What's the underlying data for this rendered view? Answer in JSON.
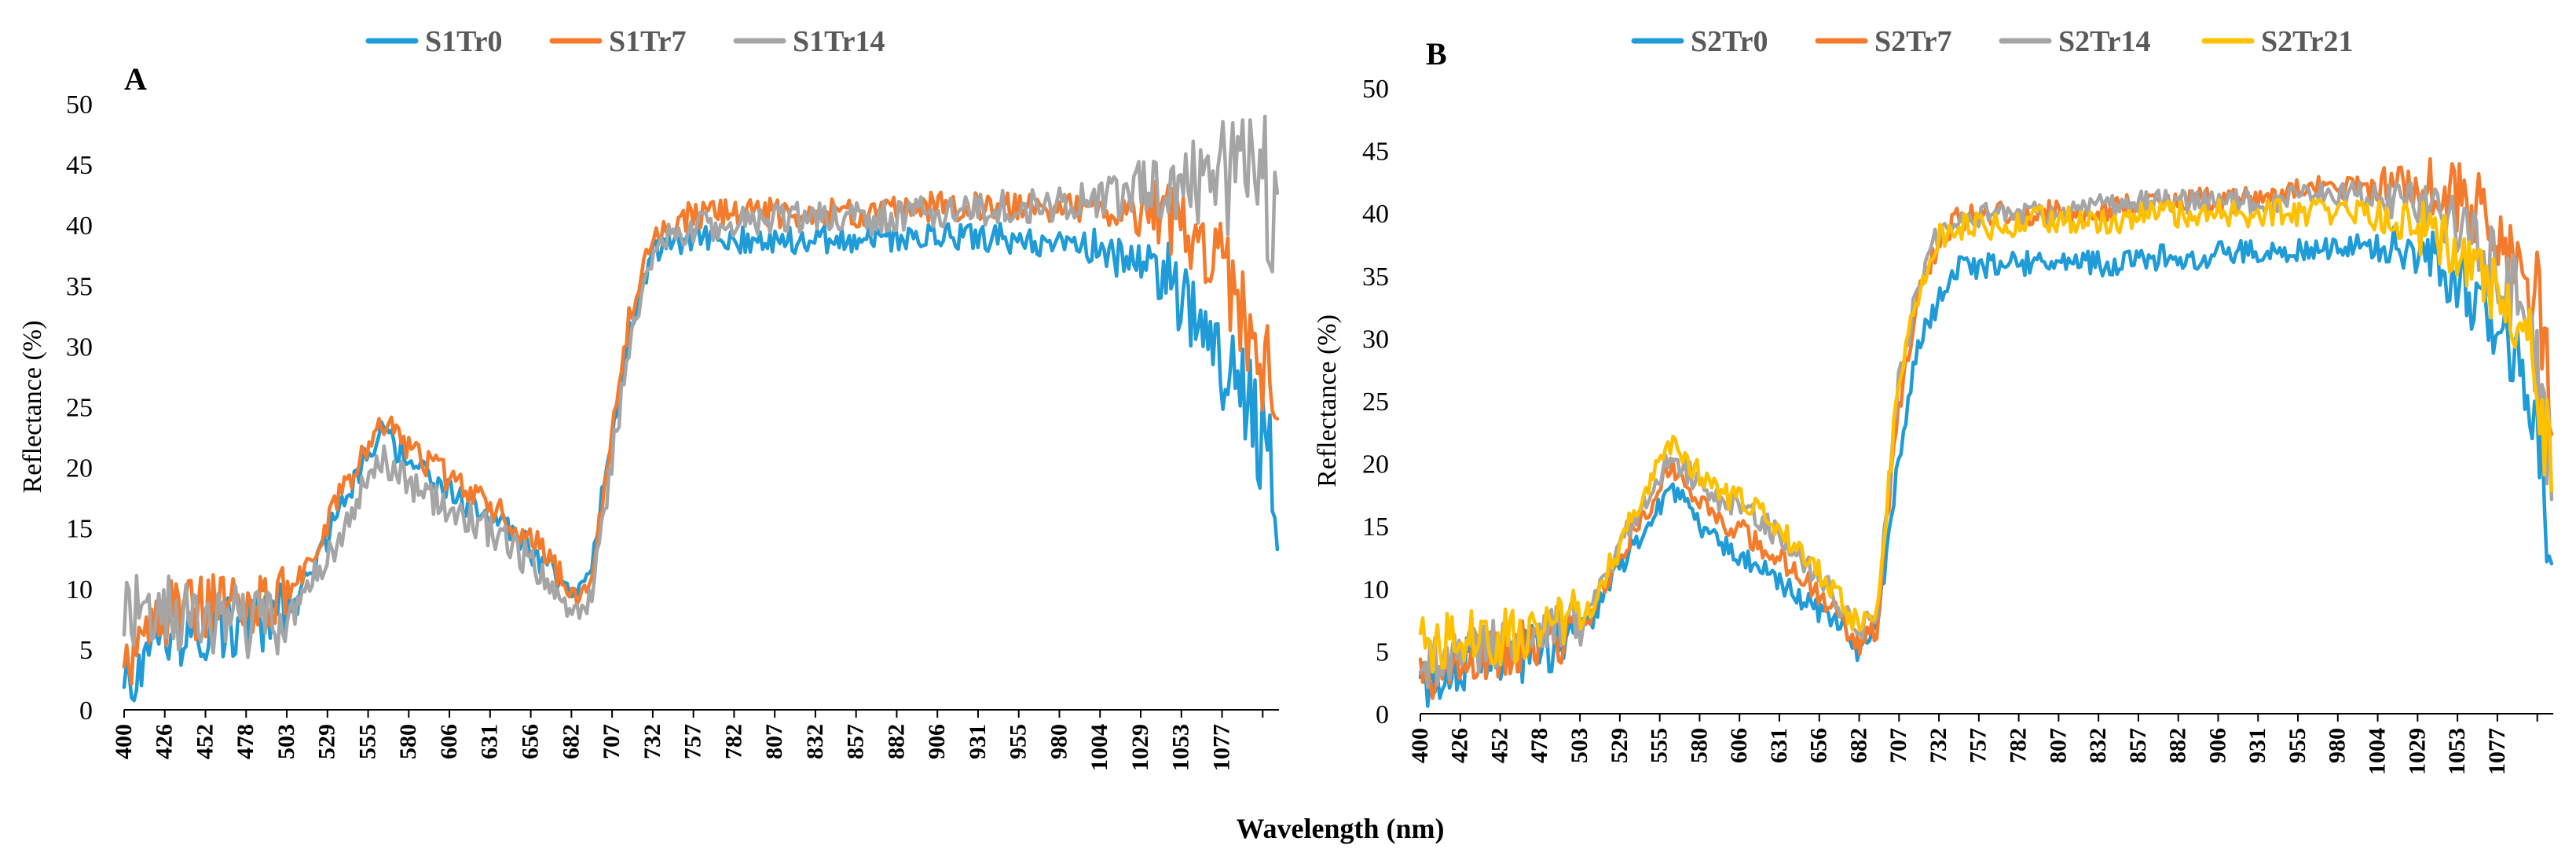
{
  "shared_xlabel": "Wavelength (nm)",
  "chart_data": [
    {
      "type": "line",
      "panel_label": "A",
      "title": "",
      "xlabel": "Wavelength (nm)",
      "ylabel": "Reflectance (%)",
      "xlim": [
        400,
        1100
      ],
      "ylim": [
        0,
        50
      ],
      "yticks": [
        0,
        5,
        10,
        15,
        20,
        25,
        30,
        35,
        40,
        45,
        50
      ],
      "xticks": [
        400,
        426,
        452,
        478,
        503,
        529,
        555,
        580,
        606,
        631,
        656,
        682,
        707,
        732,
        757,
        782,
        807,
        832,
        857,
        882,
        906,
        931,
        955,
        980,
        1004,
        1029,
        1053,
        1077
      ],
      "legend_position": "top",
      "grid": false,
      "x": [
        400,
        426,
        452,
        478,
        503,
        529,
        555,
        580,
        606,
        631,
        656,
        670,
        682,
        695,
        707,
        720,
        732,
        757,
        782,
        807,
        832,
        857,
        882,
        906,
        931,
        955,
        980,
        1004,
        1029,
        1053,
        1077,
        1090,
        1100
      ],
      "series": [
        {
          "name": "S1Tr0",
          "color": "#1F9BD8",
          "noise": 1.2,
          "values": [
            1.5,
            6,
            6.5,
            7,
            8.5,
            16,
            23,
            19.5,
            17,
            15,
            12,
            9.5,
            10.5,
            22,
            32,
            37.5,
            38.5,
            38.8,
            38.8,
            38.8,
            38.8,
            39,
            39,
            39,
            39,
            38.5,
            38.5,
            37.5,
            36.5,
            31,
            26,
            22,
            17
          ]
        },
        {
          "name": "S1Tr7",
          "color": "#F47A2C",
          "noise": 1.2,
          "values": [
            2.5,
            8,
            8.5,
            9,
            10,
            17,
            24,
            20.5,
            18.5,
            16,
            13,
            9.5,
            10,
            22,
            33,
            39.5,
            40.5,
            41,
            41,
            41,
            41,
            41,
            41.5,
            41.5,
            41.5,
            41.5,
            41.5,
            41.5,
            41,
            39.5,
            34,
            29,
            23
          ]
        },
        {
          "name": "S1Tr14",
          "color": "#A5A5A5",
          "noise": 1.4,
          "values": [
            8.5,
            8,
            7.5,
            7,
            8,
            14,
            21,
            18,
            16,
            14,
            11,
            7.5,
            8.5,
            20,
            31,
            37,
            39,
            40,
            40.5,
            40.5,
            40.5,
            40.5,
            41,
            41,
            41.5,
            41.5,
            42,
            42.5,
            43,
            43.5,
            44.5,
            45,
            38
          ]
        }
      ]
    },
    {
      "type": "line",
      "panel_label": "B",
      "title": "",
      "xlabel": "Wavelength (nm)",
      "ylabel": "Reflectance (%)",
      "xlim": [
        400,
        1100
      ],
      "ylim": [
        0,
        50
      ],
      "yticks": [
        0,
        5,
        10,
        15,
        20,
        25,
        30,
        35,
        40,
        45,
        50
      ],
      "xticks": [
        400,
        426,
        452,
        478,
        503,
        529,
        555,
        580,
        606,
        631,
        656,
        682,
        707,
        732,
        757,
        782,
        807,
        832,
        857,
        882,
        906,
        931,
        955,
        980,
        1004,
        1029,
        1053,
        1077
      ],
      "legend_position": "top",
      "grid": false,
      "x": [
        400,
        426,
        452,
        478,
        503,
        529,
        555,
        580,
        606,
        631,
        656,
        670,
        682,
        695,
        707,
        720,
        732,
        757,
        782,
        807,
        832,
        857,
        882,
        906,
        931,
        955,
        980,
        1004,
        1029,
        1053,
        1077,
        1090,
        1100
      ],
      "series": [
        {
          "name": "S2Tr0",
          "color": "#1F9BD8",
          "noise": 1.0,
          "values": [
            2.5,
            4,
            4.5,
            5,
            7,
            13,
            18,
            14,
            12,
            9.5,
            7.5,
            5,
            6.5,
            20,
            29,
            33,
            35.5,
            36,
            36,
            36,
            36,
            36.5,
            36.5,
            37,
            37,
            37,
            37.5,
            37.5,
            36,
            33,
            29,
            22,
            12
          ]
        },
        {
          "name": "S2Tr7",
          "color": "#F47A2C",
          "noise": 1.0,
          "values": [
            3,
            4.5,
            5,
            5.5,
            7.5,
            14,
            19.5,
            16,
            14,
            11.5,
            8.5,
            5.5,
            7,
            24,
            33,
            37.5,
            39.5,
            40,
            40,
            40,
            40.5,
            40.5,
            41,
            41,
            41.5,
            42,
            42,
            42.5,
            42,
            40.5,
            37,
            33,
            24
          ]
        },
        {
          "name": "S2Tr14",
          "color": "#A5A5A5",
          "noise": 1.0,
          "values": [
            4,
            5,
            5.5,
            6,
            8,
            15,
            20.5,
            17.5,
            16,
            13,
            9.5,
            6.5,
            8,
            26,
            34,
            38.5,
            39.5,
            40,
            40,
            40.5,
            40.5,
            41,
            41,
            41,
            41,
            41.5,
            41.5,
            41,
            40.5,
            38,
            33,
            28,
            18
          ]
        },
        {
          "name": "S2Tr21",
          "color": "#FFC000",
          "noise": 1.1,
          "values": [
            5.5,
            6,
            6,
            6.5,
            8,
            15,
            21.5,
            18,
            16.5,
            13.5,
            10,
            7,
            8,
            26,
            33.5,
            38,
            39,
            39,
            39.5,
            39.5,
            39.5,
            40,
            40,
            40,
            40,
            40,
            40,
            39.5,
            38.5,
            36,
            32,
            27,
            19
          ]
        }
      ]
    }
  ]
}
